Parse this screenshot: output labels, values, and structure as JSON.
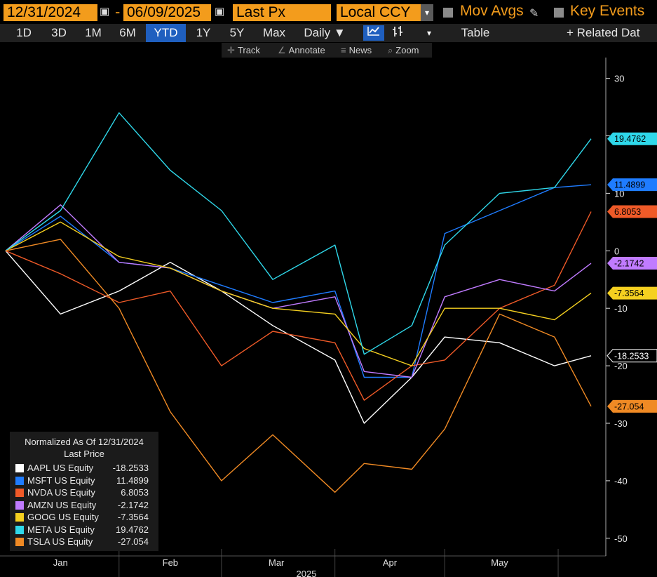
{
  "toolbar": {
    "start_date": "12/31/2024",
    "end_date": "06/09/2025",
    "field": "Last Px",
    "currency": "Local CCY",
    "mov_avgs": "Mov Avgs",
    "key_events": "Key Events"
  },
  "tabs": [
    "1D",
    "3D",
    "1M",
    "6M",
    "YTD",
    "1Y",
    "5Y",
    "Max"
  ],
  "active_tab": "YTD",
  "period": "Daily ▼",
  "table_label": "Table",
  "related_label": "+ Related Dat",
  "tools": [
    "Track",
    "Annotate",
    "News",
    "Zoom"
  ],
  "icons": {
    "calendar": "calendar-icon",
    "dropdown": "chevron-down-icon",
    "pencil": "pencil-icon",
    "line": "line-chart-icon",
    "bars": "candle-chart-icon",
    "track": "crosshair-icon",
    "annotate": "annotate-icon",
    "news": "news-icon",
    "zoom": "search-icon"
  },
  "legend": {
    "title": "Normalized As Of 12/31/2024",
    "subtitle": "Last Price"
  },
  "chart_data": {
    "type": "line",
    "x": [
      "2024-12-31",
      "2025-01-15",
      "2025-01-31",
      "2025-02-14",
      "2025-02-28",
      "2025-03-14",
      "2025-03-31",
      "2025-04-08",
      "2025-04-21",
      "2025-04-30",
      "2025-05-15",
      "2025-05-30",
      "2025-06-09"
    ],
    "x_tick_labels": [
      "Jan",
      "Feb",
      "Mar",
      "Apr",
      "May"
    ],
    "x_year_label": "2025",
    "ylim": [
      -51,
      33
    ],
    "y_ticks": [
      30,
      20,
      10,
      0,
      -10,
      -20,
      -30,
      -40,
      -50
    ],
    "y_tick_labels": [
      "30",
      "20",
      "10",
      "0",
      "-10",
      "-20",
      "-30",
      "-40",
      "-50"
    ],
    "series": [
      {
        "name": "AAPL US Equity",
        "color": "#ffffff",
        "last": "-18.2533",
        "values": [
          0,
          -11,
          -7,
          -2,
          -7,
          -13,
          -19,
          -30,
          -22,
          -15,
          -16,
          -20,
          -18.25
        ]
      },
      {
        "name": "MSFT US Equity",
        "color": "#1f7cff",
        "last": "11.4899",
        "values": [
          0,
          6,
          -2,
          -3,
          -6,
          -9,
          -7,
          -22,
          -22,
          3,
          7,
          11,
          11.49
        ]
      },
      {
        "name": "NVDA US Equity",
        "color": "#ef5a28",
        "last": "6.8053",
        "values": [
          0,
          -4,
          -9,
          -7,
          -20,
          -14,
          -16,
          -26,
          -20,
          -19,
          -10,
          -6,
          6.81
        ]
      },
      {
        "name": "AMZN US Equity",
        "color": "#c07bff",
        "last": "-2.1742",
        "values": [
          0,
          8,
          -2,
          -3,
          -7,
          -10,
          -8,
          -21,
          -22,
          -8,
          -5,
          -7,
          -2.17
        ]
      },
      {
        "name": "GOOG US Equity",
        "color": "#f5d020",
        "last": "-7.3564",
        "values": [
          0,
          5,
          -1,
          -3,
          -7,
          -10,
          -11,
          -17,
          -20,
          -10,
          -10,
          -12,
          -7.36
        ]
      },
      {
        "name": "META US Equity",
        "color": "#2fd8ea",
        "last": "19.4762",
        "values": [
          0,
          7,
          24,
          14,
          7,
          -5,
          1,
          -18,
          -13,
          1,
          10,
          11,
          19.48
        ]
      },
      {
        "name": "TSLA US Equity",
        "color": "#f08a24",
        "last": "-27.054",
        "values": [
          0,
          2,
          -10,
          -28,
          -40,
          -32,
          -42,
          -37,
          -38,
          -31,
          -11,
          -15,
          -27.05
        ]
      }
    ]
  }
}
